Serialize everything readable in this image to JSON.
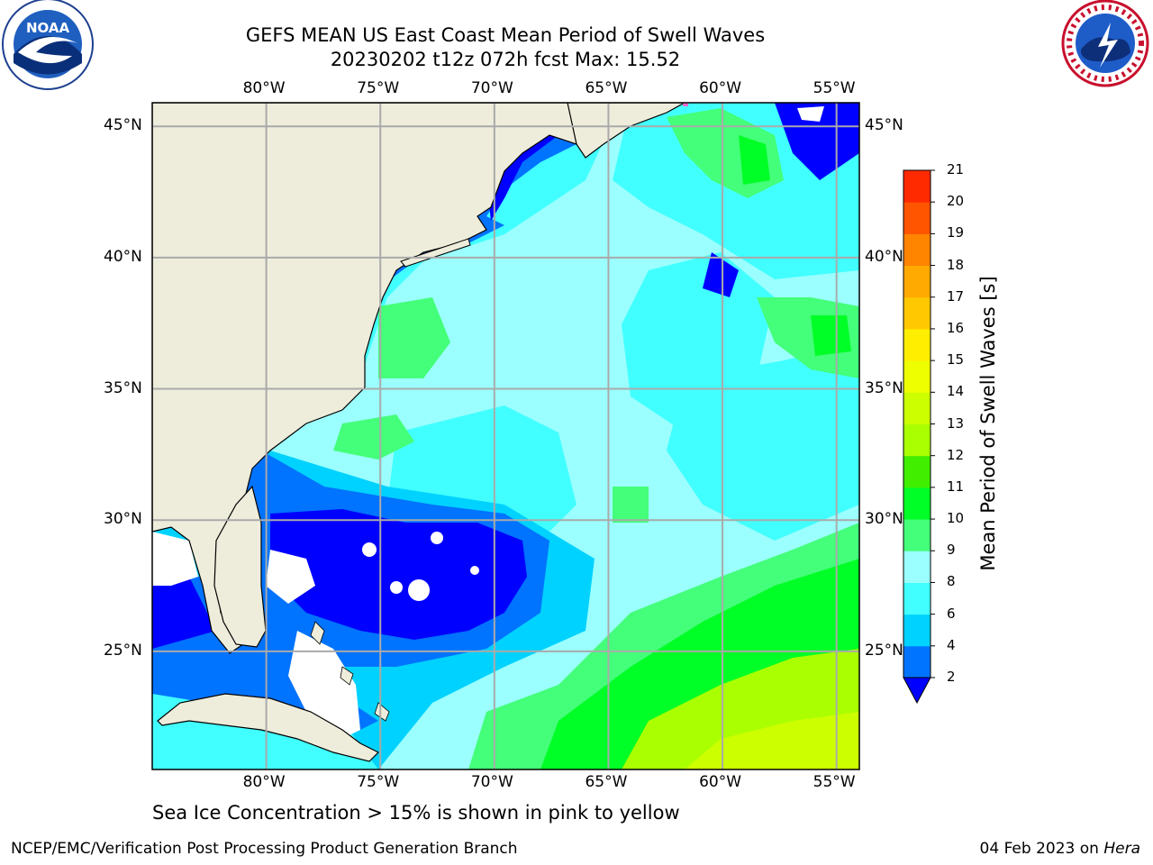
{
  "title": {
    "line1": "GEFS MEAN US East Coast Mean Period of Swell Waves",
    "line2": "20230202 t12z 072h fcst   Max: 15.52"
  },
  "logos": {
    "left": "noaa-logo",
    "right": "national-weather-service-logo"
  },
  "map": {
    "lon_ticks": [
      "80°W",
      "75°W",
      "70°W",
      "65°W",
      "60°W",
      "55°W"
    ],
    "lat_ticks": [
      "45°N",
      "40°N",
      "35°N",
      "30°N",
      "25°N"
    ],
    "lon_range": [
      -85,
      -54
    ],
    "lat_range": [
      20.5,
      45.9
    ],
    "land_color": "#eeeddc",
    "missing_color": "#ffffff"
  },
  "colorbar": {
    "title": "Mean Period of Swell Waves [s]",
    "levels": [
      "2",
      "4",
      "6",
      "8",
      "9",
      "10",
      "11",
      "12",
      "13",
      "14",
      "15",
      "16",
      "17",
      "18",
      "19",
      "20",
      "21"
    ],
    "colors": [
      "#0073ff",
      "#00d2ff",
      "#41ffff",
      "#9bffff",
      "#44ff7a",
      "#00ff26",
      "#41ee00",
      "#aaff00",
      "#ccff00",
      "#eeff00",
      "#ffee00",
      "#ffc800",
      "#ffaa00",
      "#ff8400",
      "#ff5500",
      "#ff2a00",
      "#ff0000"
    ],
    "under_color": "#0000ff"
  },
  "caption": "Sea Ice Concentration > 15% is shown in pink to yellow",
  "footer": {
    "left": "NCEP/EMC/Verification Post Processing Product Generation Branch",
    "right_prefix": "04 Feb 2023 on ",
    "right_machine": "Hera"
  }
}
